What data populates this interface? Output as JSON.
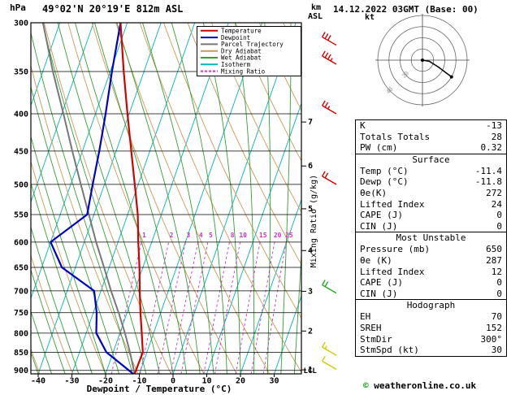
{
  "header": {
    "pressure_unit": "hPa",
    "station": "49°02'N 20°19'E 812m ASL",
    "date": "14.12.2022 03GMT (Base: 00)",
    "alt_unit_km": "km",
    "alt_unit_asl": "ASL"
  },
  "axes": {
    "x_label": "Dewpoint / Temperature (°C)",
    "x_ticks": [
      -40,
      -30,
      -20,
      -10,
      0,
      10,
      20,
      30
    ],
    "pressure_ticks": [
      300,
      350,
      400,
      450,
      500,
      550,
      600,
      650,
      700,
      750,
      800,
      850,
      900
    ],
    "km_ticks": [
      1,
      2,
      3,
      4,
      5,
      6,
      7
    ],
    "mixing_ratio_axis_label": "Mixing Ratio (g/kg)",
    "lcl_label": "LCL"
  },
  "legend": [
    {
      "label": "Temperature",
      "color": "#d40000",
      "dashed": false
    },
    {
      "label": "Dewpoint",
      "color": "#0000c8",
      "dashed": false
    },
    {
      "label": "Parcel Trajectory",
      "color": "#777777",
      "dashed": false
    },
    {
      "label": "Dry Adiabat",
      "color": "#cc9955",
      "dashed": false
    },
    {
      "label": "Wet Adiabat",
      "color": "#33a033",
      "dashed": false
    },
    {
      "label": "Isotherm",
      "color": "#00b4b4",
      "dashed": false
    },
    {
      "label": "Mixing Ratio",
      "color": "#cc33cc",
      "dashed": true
    }
  ],
  "chart_data": {
    "type": "skewt_log_p_sounding",
    "pressure_range_hPa": [
      300,
      910
    ],
    "temperature_axis_range_C": [
      -40,
      30
    ],
    "isotherm_step_C": 10,
    "dry_adiabat_step_K": 10,
    "wet_adiabat_step_C": 4,
    "mixing_ratio_values_g_kg": [
      1,
      2,
      3,
      4,
      5,
      8,
      10,
      15,
      20,
      25
    ],
    "temperature_profile_p_T": [
      [
        910,
        -11.4
      ],
      [
        850,
        -11.2
      ],
      [
        800,
        -13.5
      ],
      [
        750,
        -16.0
      ],
      [
        700,
        -18.5
      ],
      [
        650,
        -21.0
      ],
      [
        600,
        -24.0
      ],
      [
        550,
        -27.0
      ],
      [
        500,
        -31.0
      ],
      [
        450,
        -35.5
      ],
      [
        400,
        -40.5
      ],
      [
        350,
        -46.0
      ],
      [
        300,
        -52.0
      ]
    ],
    "dewpoint_profile_p_T": [
      [
        910,
        -11.8
      ],
      [
        850,
        -22.0
      ],
      [
        800,
        -27.0
      ],
      [
        750,
        -29.0
      ],
      [
        700,
        -32.0
      ],
      [
        650,
        -44.0
      ],
      [
        600,
        -50.0
      ],
      [
        550,
        -42.0
      ],
      [
        500,
        -43.5
      ],
      [
        450,
        -45.0
      ],
      [
        400,
        -47.0
      ],
      [
        350,
        -49.5
      ],
      [
        300,
        -52.0
      ]
    ],
    "parcel_profile_p_T": [
      [
        910,
        -11.4
      ],
      [
        850,
        -15.0
      ],
      [
        800,
        -18.5
      ],
      [
        750,
        -22.5
      ],
      [
        700,
        -27.0
      ],
      [
        650,
        -31.5
      ],
      [
        600,
        -36.5
      ],
      [
        550,
        -41.5
      ],
      [
        500,
        -47.0
      ],
      [
        450,
        -53.0
      ],
      [
        400,
        -59.5
      ],
      [
        350,
        -67.0
      ],
      [
        300,
        -75.0
      ]
    ],
    "wind_barbs": [
      {
        "p": 322,
        "color": "#d40000",
        "full": 3,
        "half": 0
      },
      {
        "p": 342,
        "color": "#d40000",
        "full": 3,
        "half": 1
      },
      {
        "p": 400,
        "color": "#d40000",
        "full": 2,
        "half": 1
      },
      {
        "p": 500,
        "color": "#d40000",
        "full": 2,
        "half": 0
      },
      {
        "p": 705,
        "color": "#22aa22",
        "full": 2,
        "half": 0
      },
      {
        "p": 858,
        "color": "#cccc00",
        "full": 1,
        "half": 1
      },
      {
        "p": 897,
        "color": "#cccc00",
        "full": 1,
        "half": 0
      }
    ],
    "hodograph": {
      "unit_label": "kt",
      "rings_kt": [
        10,
        20,
        30,
        40
      ],
      "ring_labels_kt": [
        20,
        40
      ],
      "trace_uv_kt": [
        [
          0,
          0
        ],
        [
          6,
          -1
        ],
        [
          14,
          -6
        ],
        [
          22,
          -12
        ],
        [
          26,
          -15
        ]
      ]
    }
  },
  "indices": {
    "general": {
      "rows": [
        [
          "K",
          "-13"
        ],
        [
          "Totals Totals",
          "28"
        ],
        [
          "PW (cm)",
          "0.32"
        ]
      ]
    },
    "surface": {
      "title": "Surface",
      "rows": [
        [
          "Temp (°C)",
          "-11.4"
        ],
        [
          "Dewp (°C)",
          "-11.8"
        ],
        [
          "θe(K)",
          "272"
        ],
        [
          "Lifted Index",
          "24"
        ],
        [
          "CAPE (J)",
          "0"
        ],
        [
          "CIN (J)",
          "0"
        ]
      ]
    },
    "most_unstable": {
      "title": "Most Unstable",
      "rows": [
        [
          "Pressure (mb)",
          "650"
        ],
        [
          "θe (K)",
          "287"
        ],
        [
          "Lifted Index",
          "12"
        ],
        [
          "CAPE (J)",
          "0"
        ],
        [
          "CIN (J)",
          "0"
        ]
      ]
    },
    "hodograph": {
      "title": "Hodograph",
      "rows": [
        [
          "EH",
          "70"
        ],
        [
          "SREH",
          "152"
        ],
        [
          "StmDir",
          "300°"
        ],
        [
          "StmSpd (kt)",
          "30"
        ]
      ]
    }
  },
  "footer": {
    "copyright_symbol": "©",
    "site": "weatheronline.co.uk"
  },
  "colors": {
    "temperature": "#d40000",
    "dewpoint": "#0000c8",
    "parcel": "#777777",
    "dry_adiabat": "#cc9955",
    "wet_adiabat": "#33a033",
    "isotherm": "#00b4b4",
    "mixing_ratio": "#cc33cc",
    "grid": "#000000"
  }
}
